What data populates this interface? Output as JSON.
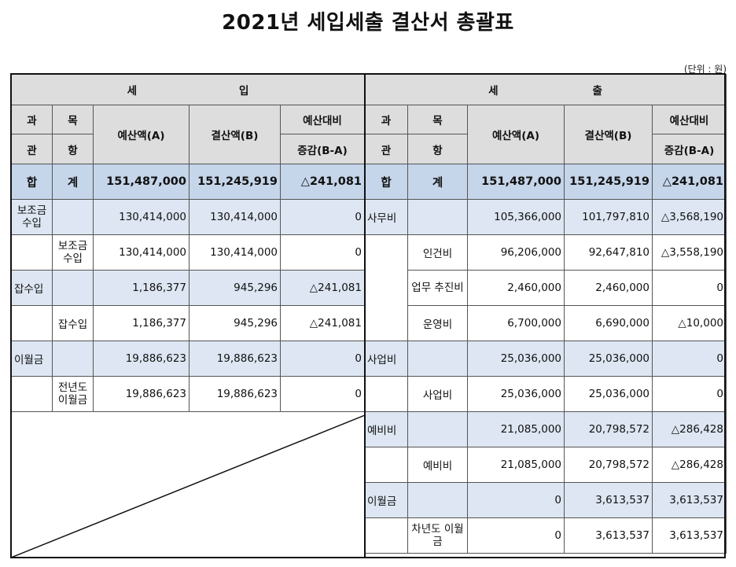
{
  "title": "2021년 세입세출 결산서 총괄표",
  "unit": "(단위 : 원)",
  "revenue_header": {
    "a": "세",
    "b": "입"
  },
  "expense_header": {
    "a": "세",
    "b": "출"
  },
  "cols": {
    "gwa": "과",
    "mok": "목",
    "gwan": "관",
    "hang": "항",
    "budget": "예산액(A)",
    "settle": "결산액(B)",
    "diff1": "예산대비",
    "diff2": "증감(B-A)"
  },
  "total": {
    "label_a": "합",
    "label_b": "계",
    "rev_budget": "151,487,000",
    "rev_settle": "151,245,919",
    "rev_diff": "△241,081",
    "exp_budget": "151,487,000",
    "exp_settle": "151,245,919",
    "exp_diff": "△241,081"
  },
  "revenue": [
    {
      "gwan": "보조금 수입",
      "hang": "",
      "budget": "130,414,000",
      "settle": "130,414,000",
      "diff": "0"
    },
    {
      "gwan": "",
      "hang": "보조금 수입",
      "budget": "130,414,000",
      "settle": "130,414,000",
      "diff": "0"
    },
    {
      "gwan": "잡수입",
      "hang": "",
      "budget": "1,186,377",
      "settle": "945,296",
      "diff": "△241,081"
    },
    {
      "gwan": "",
      "hang": "잡수입",
      "budget": "1,186,377",
      "settle": "945,296",
      "diff": "△241,081"
    },
    {
      "gwan": "이월금",
      "hang": "",
      "budget": "19,886,623",
      "settle": "19,886,623",
      "diff": "0"
    },
    {
      "gwan": "",
      "hang": "전년도 이월금",
      "budget": "19,886,623",
      "settle": "19,886,623",
      "diff": "0"
    }
  ],
  "expense": [
    {
      "gwan": "사무비",
      "hang": "",
      "budget": "105,366,000",
      "settle": "101,797,810",
      "diff": "△3,568,190"
    },
    {
      "gwan": "",
      "hang": "인건비",
      "budget": "96,206,000",
      "settle": "92,647,810",
      "diff": "△3,558,190"
    },
    {
      "gwan": "",
      "hang": "업무 추진비",
      "budget": "2,460,000",
      "settle": "2,460,000",
      "diff": "0"
    },
    {
      "gwan": "",
      "hang": "운영비",
      "budget": "6,700,000",
      "settle": "6,690,000",
      "diff": "△10,000"
    },
    {
      "gwan": "사업비",
      "hang": "",
      "budget": "25,036,000",
      "settle": "25,036,000",
      "diff": "0"
    },
    {
      "gwan": "",
      "hang": "사업비",
      "budget": "25,036,000",
      "settle": "25,036,000",
      "diff": "0"
    },
    {
      "gwan": "예비비",
      "hang": "",
      "budget": "21,085,000",
      "settle": "20,798,572",
      "diff": "△286,428"
    },
    {
      "gwan": "",
      "hang": "예비비",
      "budget": "21,085,000",
      "settle": "20,798,572",
      "diff": "△286,428"
    },
    {
      "gwan": "이월금",
      "hang": "",
      "budget": "0",
      "settle": "3,613,537",
      "diff": "3,613,537"
    },
    {
      "gwan": "",
      "hang": "차년도 이월금",
      "budget": "0",
      "settle": "3,613,537",
      "diff": "3,613,537"
    }
  ]
}
